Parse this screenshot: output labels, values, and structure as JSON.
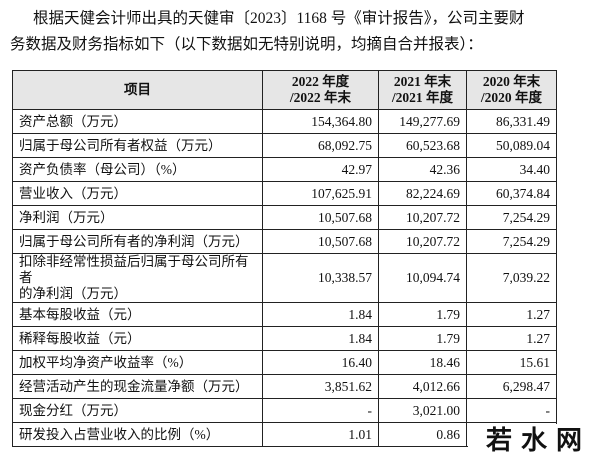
{
  "intro": {
    "lines": [
      "根据天健会计师出具的天健审〔2023〕1168 号《审计报告》，公司主要财",
      "务数据及财务指标如下（以下数据如无特别说明，均摘自合并报表）："
    ]
  },
  "table": {
    "headers": [
      "项目",
      "2022 年度\n/2022 年末",
      "2021 年末\n/2021 年度",
      "2020 年末\n/2020 年度"
    ],
    "rows": [
      [
        "资产总额（万元）",
        "154,364.80",
        "149,277.69",
        "86,331.49"
      ],
      [
        "归属于母公司所有者权益（万元）",
        "68,092.75",
        "60,523.68",
        "50,089.04"
      ],
      [
        "资产负债率（母公司）（%）",
        "42.97",
        "42.36",
        "34.40"
      ],
      [
        "营业收入（万元）",
        "107,625.91",
        "82,224.69",
        "60,374.84"
      ],
      [
        "净利润（万元）",
        "10,507.68",
        "10,207.72",
        "7,254.29"
      ],
      [
        "归属于母公司所有者的净利润（万元）",
        "10,507.68",
        "10,207.72",
        "7,254.29"
      ],
      [
        "扣除非经常性损益后归属于母公司所有者\n的净利润（万元）",
        "10,338.57",
        "10,094.74",
        "7,039.22"
      ],
      [
        "基本每股收益（元）",
        "1.84",
        "1.79",
        "1.27"
      ],
      [
        "稀释每股收益（元）",
        "1.84",
        "1.79",
        "1.27"
      ],
      [
        "加权平均净资产收益率（%）",
        "16.40",
        "18.46",
        "15.61"
      ],
      [
        "经营活动产生的现金流量净额（万元）",
        "3,851.62",
        "4,012.66",
        "6,298.47"
      ],
      [
        "现金分红（万元）",
        "-",
        "3,021.00",
        "-"
      ],
      [
        "研发投入占营业收入的比例（%）",
        "1.01",
        "0.86",
        ""
      ]
    ]
  },
  "watermark": "若 水 网"
}
